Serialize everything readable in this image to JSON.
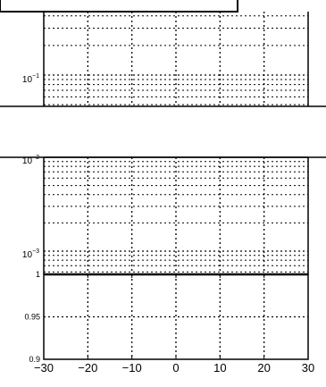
{
  "chart_data": [
    {
      "type": "line",
      "panel": "top",
      "yscale": "log",
      "xlim": [
        -30,
        30
      ],
      "x_ticks": [
        -30,
        -20,
        -10,
        0,
        10,
        20,
        30
      ],
      "y_tick_labels": [
        {
          "base": "10",
          "exp": "−1"
        }
      ],
      "grid": true,
      "series": []
    },
    {
      "type": "line",
      "panel": "middle",
      "yscale": "log",
      "xlim": [
        -30,
        30
      ],
      "x_ticks": [
        -30,
        -20,
        -10,
        0,
        10,
        20,
        30
      ],
      "y_tick_labels": [
        {
          "base": "10",
          "exp": "−2"
        },
        {
          "base": "10",
          "exp": "−3"
        }
      ],
      "grid": true,
      "series": []
    },
    {
      "type": "line",
      "panel": "bottom",
      "yscale": "linear",
      "xlim": [
        -30,
        30
      ],
      "ylim": [
        0.9,
        1
      ],
      "x_ticks": [
        -30,
        -20,
        -10,
        0,
        10,
        20,
        30
      ],
      "x_tick_labels": [
        "−30",
        "−20",
        "−10",
        "0",
        "10",
        "20",
        "30"
      ],
      "y_ticks": [
        0.9,
        0.95,
        1
      ],
      "y_tick_labels": [
        "0.9",
        "0.95",
        "1"
      ],
      "grid": true,
      "series": []
    }
  ]
}
